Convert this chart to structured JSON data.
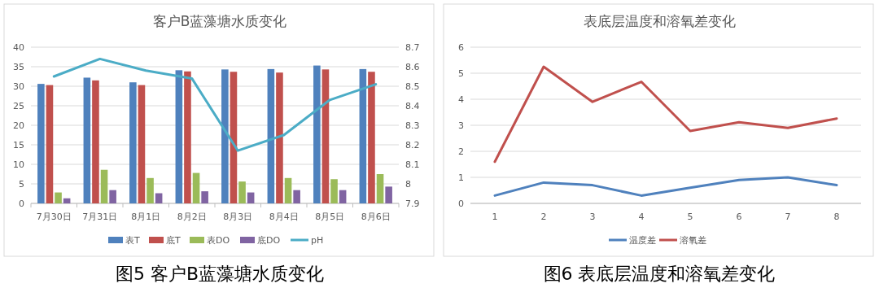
{
  "chart_data": [
    {
      "type": "bar",
      "title": "客户B蓝藻塘水质变化",
      "categories": [
        "7月30日",
        "7月31日",
        "8月1日",
        "8月2日",
        "8月3日",
        "8月4日",
        "8月5日",
        "8月6日"
      ],
      "series": [
        {
          "name": "表T",
          "color": "#4f81bd",
          "values": [
            30.6,
            32.2,
            31.0,
            34.1,
            34.3,
            34.4,
            35.3,
            34.4
          ]
        },
        {
          "name": "底T",
          "color": "#c0504d",
          "values": [
            30.3,
            31.5,
            30.3,
            33.8,
            33.7,
            33.5,
            34.3,
            33.7
          ]
        },
        {
          "name": "表DO",
          "color": "#9bbb59",
          "values": [
            2.8,
            8.6,
            6.5,
            7.8,
            5.6,
            6.5,
            6.2,
            7.5
          ]
        },
        {
          "name": "底DO",
          "color": "#8064a2",
          "values": [
            1.3,
            3.4,
            2.6,
            3.1,
            2.8,
            3.4,
            3.4,
            4.3
          ]
        },
        {
          "name": "pH",
          "color": "#4bacc6",
          "type": "line",
          "axis": "y2",
          "values": [
            8.55,
            8.64,
            8.58,
            8.54,
            8.17,
            8.25,
            8.43,
            8.51
          ]
        }
      ],
      "ylim": [
        0,
        40
      ],
      "yticks": [
        0,
        5,
        10,
        15,
        20,
        25,
        30,
        35,
        40
      ],
      "y2lim": [
        7.9,
        8.7
      ],
      "y2ticks": [
        7.9,
        8,
        8.1,
        8.2,
        8.3,
        8.4,
        8.5,
        8.6,
        8.7
      ],
      "grid": "y",
      "legend": "bottom",
      "marker": "none",
      "annotations": [
        "图5  客户B蓝藻塘水质变化"
      ]
    },
    {
      "type": "line",
      "title": "表底层温度和溶氧差变化",
      "categories": [
        "1",
        "2",
        "3",
        "4",
        "5",
        "6",
        "7",
        "8"
      ],
      "series": [
        {
          "name": "温度差",
          "color": "#4f81bd",
          "values": [
            0.3,
            0.8,
            0.7,
            0.3,
            0.6,
            0.9,
            1.0,
            0.7
          ]
        },
        {
          "name": "溶氧差",
          "color": "#c0504d",
          "values": [
            1.6,
            5.25,
            3.9,
            4.67,
            2.78,
            3.12,
            2.9,
            3.26
          ]
        }
      ],
      "ylim": [
        0,
        6
      ],
      "yticks": [
        0,
        1,
        2,
        3,
        4,
        5,
        6
      ],
      "grid": "y",
      "legend": "bottom",
      "marker": "none",
      "annotations": [
        "图6  表底层温度和溶氧差变化"
      ]
    }
  ]
}
